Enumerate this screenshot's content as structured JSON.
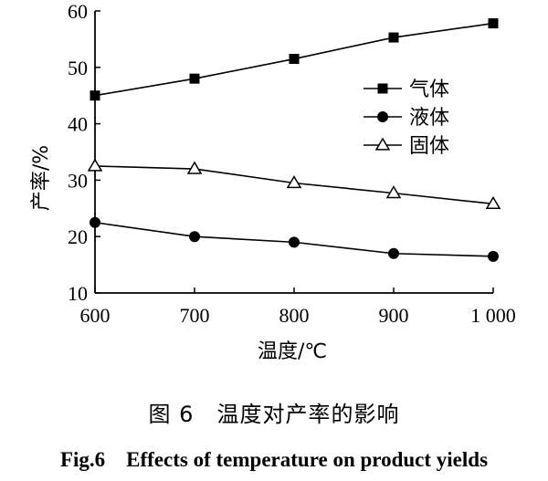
{
  "chart_data": {
    "type": "line",
    "x": [
      600,
      700,
      800,
      900,
      1000
    ],
    "x_tick_labels": [
      "600",
      "700",
      "800",
      "900",
      "1 000"
    ],
    "y_ticks": [
      10,
      20,
      30,
      40,
      50,
      60
    ],
    "xlim": [
      600,
      1000
    ],
    "ylim": [
      10,
      60
    ],
    "xlabel": "温度/℃",
    "ylabel": "产率/%",
    "grid": false,
    "legend_position": "right",
    "series": [
      {
        "name": "气体",
        "marker": "square",
        "values": [
          45,
          48,
          51.5,
          55.3,
          57.8
        ]
      },
      {
        "name": "液体",
        "marker": "circle",
        "values": [
          22.5,
          20,
          19,
          17,
          16.5
        ]
      },
      {
        "name": "固体",
        "marker": "triangle-open",
        "values": [
          32.5,
          32,
          29.5,
          27.7,
          25.8
        ]
      }
    ]
  },
  "caption": {
    "cn": "图 6　温度对产率的影响",
    "en": "Fig.6　Effects of temperature on product yields"
  }
}
